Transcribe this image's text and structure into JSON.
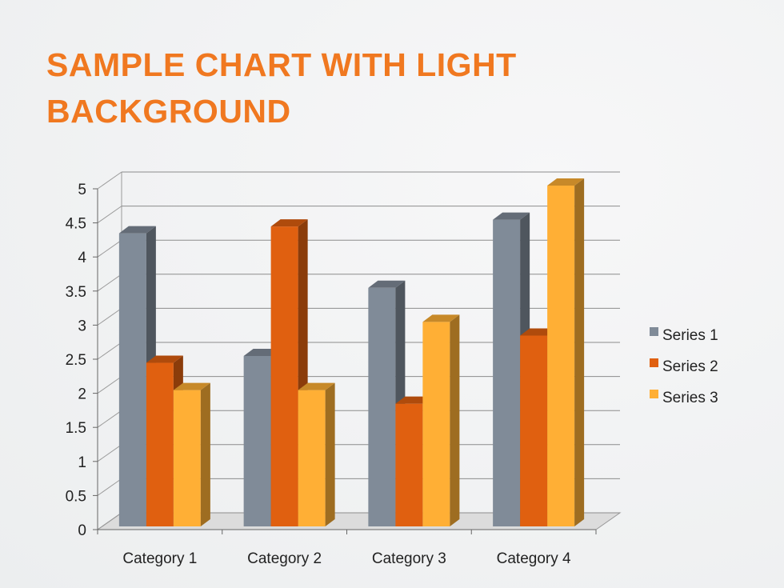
{
  "slide": {
    "title_line1": "SAMPLE CHART WITH LIGHT",
    "title_line2": "BACKGROUND"
  },
  "colors": {
    "title": "#f07820",
    "series": [
      "#808b98",
      "#e06010",
      "#ffaf35"
    ]
  },
  "chart_data": {
    "type": "bar",
    "style": "3d-clustered-column",
    "categories": [
      "Category 1",
      "Category 2",
      "Category 3",
      "Category 4"
    ],
    "series": [
      {
        "name": "Series 1",
        "values": [
          4.3,
          2.5,
          3.5,
          4.5
        ]
      },
      {
        "name": "Series 2",
        "values": [
          2.4,
          4.4,
          1.8,
          2.8
        ]
      },
      {
        "name": "Series 3",
        "values": [
          2,
          2,
          3,
          5
        ]
      }
    ],
    "ylim": [
      0,
      5
    ],
    "yticks": [
      "0",
      "0.5",
      "1",
      "1.5",
      "2",
      "2.5",
      "3",
      "3.5",
      "4",
      "4.5",
      "5"
    ],
    "xlabel": "",
    "ylabel": "",
    "grid": true,
    "legend_position": "right"
  }
}
